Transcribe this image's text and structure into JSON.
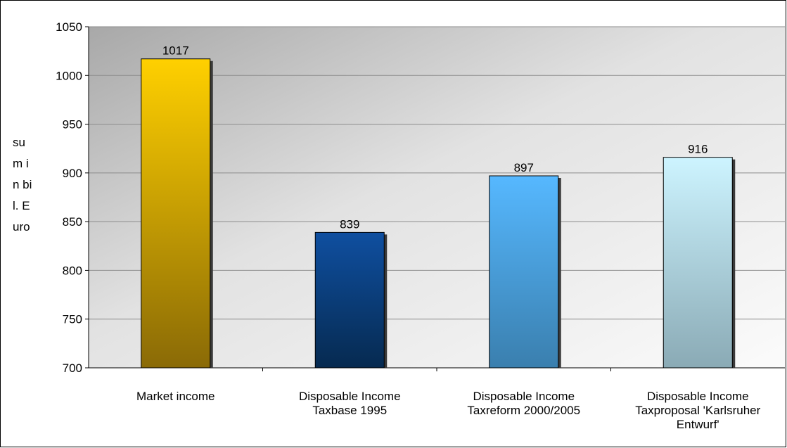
{
  "chart_data": {
    "type": "bar",
    "categories": [
      [
        "Market income"
      ],
      [
        "Disposable Income",
        "Taxbase 1995"
      ],
      [
        "Disposable Income",
        "Taxreform 2000/2005"
      ],
      [
        "Disposable Income",
        "Taxproposal 'Karlsruher",
        "Entwurf'"
      ]
    ],
    "values": [
      1017,
      839,
      897,
      916
    ],
    "ylabel": "sum in bil. Euro",
    "ylim": [
      700,
      1050
    ],
    "yticks": [
      700,
      750,
      800,
      850,
      900,
      950,
      1000,
      1050
    ],
    "grid": true,
    "bar_gradients": [
      [
        "#ffd000",
        "#8a6a06"
      ],
      [
        "#0f4fa0",
        "#062a50"
      ],
      [
        "#56b8ff",
        "#3a7fae"
      ],
      [
        "#cdf4ff",
        "#8aaab5"
      ]
    ]
  }
}
